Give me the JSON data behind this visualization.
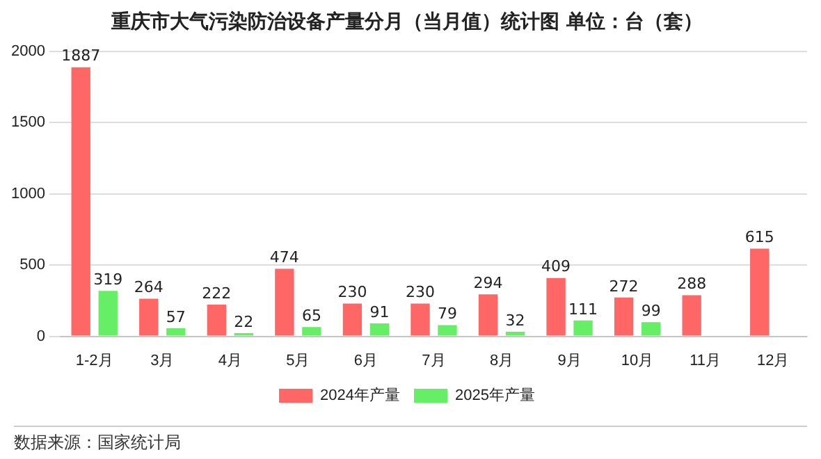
{
  "chart_data": {
    "type": "bar",
    "title": "重庆市大气污染防治设备产量分月（当月值）统计图 单位：台（套）",
    "categories": [
      "1-2月",
      "3月",
      "4月",
      "5月",
      "6月",
      "7月",
      "8月",
      "9月",
      "10月",
      "11月",
      "12月"
    ],
    "series": [
      {
        "name": "2024年产量",
        "color": "#ff6666",
        "values": [
          1887,
          264,
          222,
          474,
          230,
          230,
          294,
          409,
          272,
          288,
          615
        ]
      },
      {
        "name": "2025年产量",
        "color": "#66ee66",
        "values": [
          319,
          57,
          22,
          65,
          91,
          79,
          32,
          111,
          99,
          null,
          null
        ]
      }
    ],
    "ylim": [
      0,
      2000
    ],
    "yticks": [
      0,
      500,
      1000,
      1500,
      2000
    ],
    "grid": "y",
    "legend": "bottom",
    "data_labels": true,
    "annotations": [
      "数据来源：国家统计局"
    ]
  }
}
